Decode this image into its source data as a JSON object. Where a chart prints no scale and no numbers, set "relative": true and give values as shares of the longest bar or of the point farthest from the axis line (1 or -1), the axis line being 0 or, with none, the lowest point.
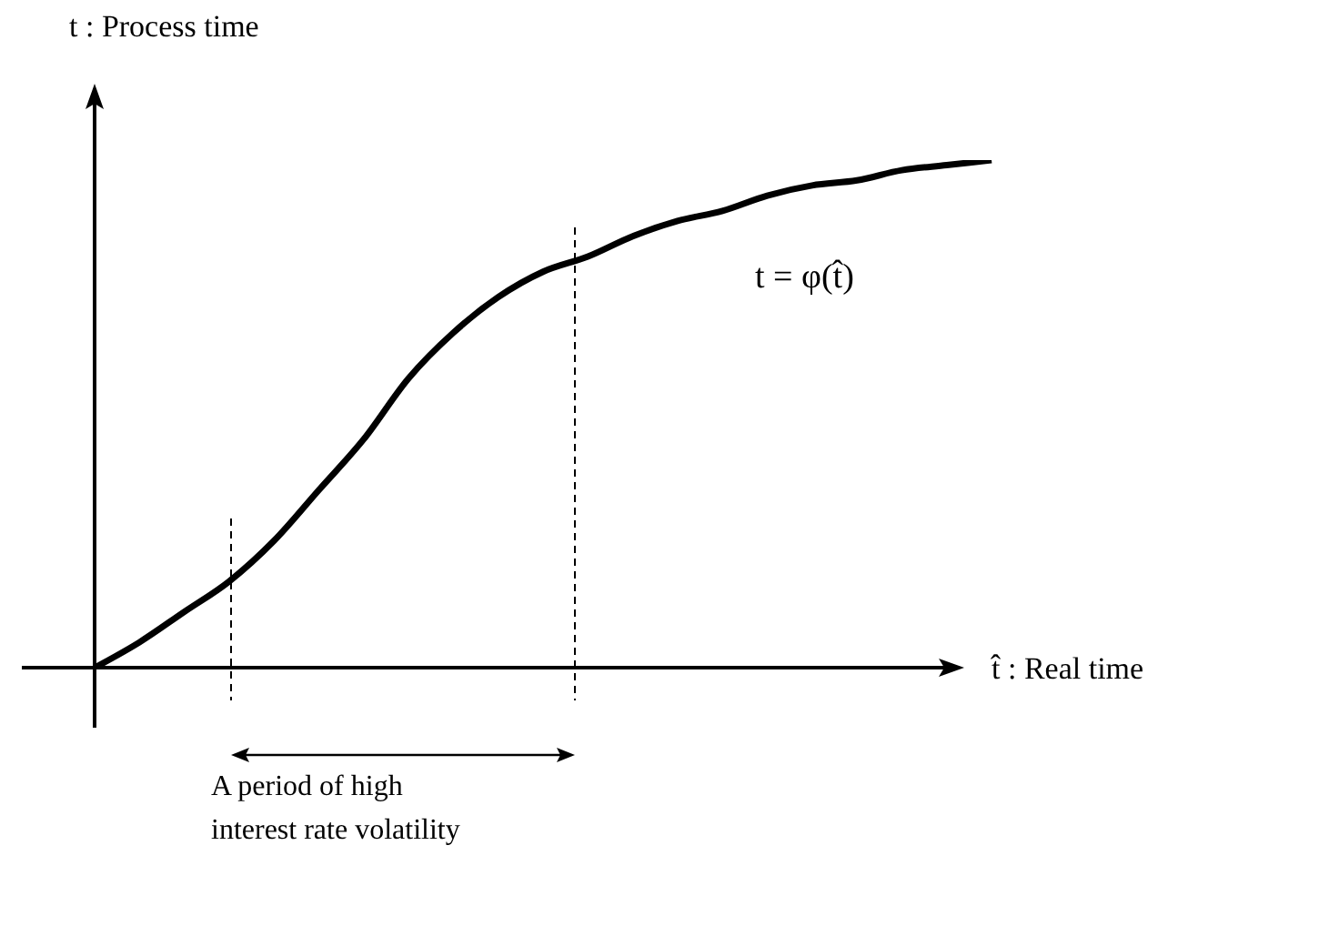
{
  "chart_data": {
    "type": "line",
    "relative": true,
    "xlabel": "t̂ : Real time",
    "ylabel": "t : Process time",
    "categories": [
      null,
      null,
      null,
      null,
      null,
      null,
      null,
      null,
      null,
      null,
      null,
      null,
      null,
      null,
      null,
      null,
      null,
      null,
      null,
      null,
      null
    ],
    "series": [
      {
        "color": "#000000",
        "values": [
          0,
          0.05,
          0.11,
          0.17,
          0.25,
          0.35,
          0.45,
          0.57,
          0.66,
          0.73,
          0.78,
          0.81,
          0.85,
          0.88,
          0.9,
          0.93,
          0.95,
          0.96,
          0.98,
          0.99,
          1
        ]
      }
    ],
    "annotations": [
      "t = φ(t̂)",
      "A period of high interest rate volatility"
    ],
    "marker": "none",
    "line_style": "solid"
  }
}
